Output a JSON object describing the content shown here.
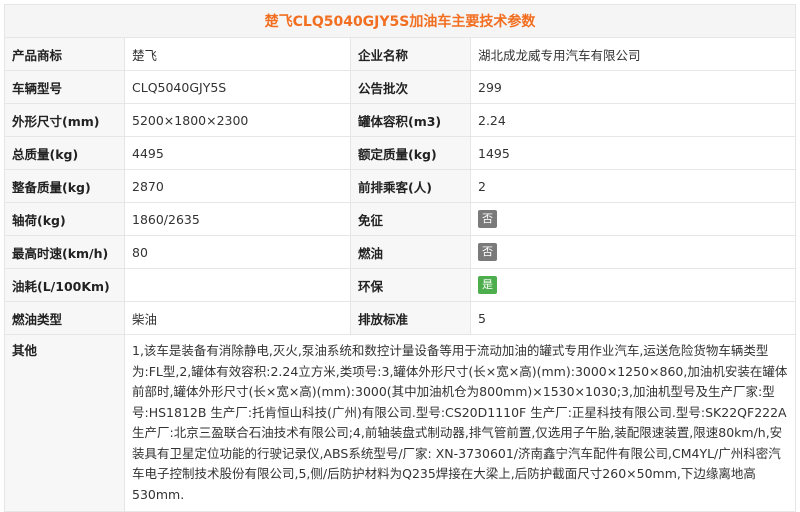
{
  "title": "楚飞CLQ5040GJY5S加油车主要技术参数",
  "rows": [
    {
      "l1": "产品商标",
      "v1": "楚飞",
      "l2": "企业名称",
      "v2": "湖北成龙威专用汽车有限公司"
    },
    {
      "l1": "车辆型号",
      "v1": "CLQ5040GJY5S",
      "l2": "公告批次",
      "v2": "299"
    },
    {
      "l1": "外形尺寸(mm)",
      "v1": "5200×1800×2300",
      "l2": "罐体容积(m3)",
      "v2": "2.24"
    },
    {
      "l1": "总质量(kg)",
      "v1": "4495",
      "l2": "额定质量(kg)",
      "v2": "1495"
    },
    {
      "l1": "整备质量(kg)",
      "v1": "2870",
      "l2": "前排乘客(人)",
      "v2": "2"
    },
    {
      "l1": "轴荷(kg)",
      "v1": "1860/2635",
      "l2": "免征",
      "badge": "否",
      "badge_type": "no"
    },
    {
      "l1": "最高时速(km/h)",
      "v1": "80",
      "l2": "燃油",
      "badge": "否",
      "badge_type": "no"
    },
    {
      "l1": "油耗(L/100Km)",
      "v1": "",
      "l2": "环保",
      "badge": "是",
      "badge_type": "yes"
    },
    {
      "l1": "燃油类型",
      "v1": "柴油",
      "l2": "排放标准",
      "v2": "5"
    }
  ],
  "other": {
    "label": "其他",
    "text": "1,该车是装备有消除静电,灭火,泵油系统和数控计量设备等用于流动加油的罐式专用作业汽车,运送危险货物车辆类型为:FL型,2,罐体有效容积:2.24立方米,类项号:3,罐体外形尺寸(长×宽×高)(mm):3000×1250×860,加油机安装在罐体前部时,罐体外形尺寸(长×宽×高)(mm):3000(其中加油机仓为800mm)×1530×1030;3,加油机型号及生产厂家:型号:HS1812B 生产厂:托肯恒山科技(广州)有限公司.型号:CS20D1110F 生产厂:正星科技有限公司.型号:SK22QF222A 生产厂:北京三盈联合石油技术有限公司;4,前轴装盘式制动器,排气管前置,仅选用子午胎,装配限速装置,限速80km/h,安装具有卫星定位功能的行驶记录仪,ABS系统型号/厂家: XN-3730601/济南鑫宁汽车配件有限公司,CM4YL/广州科密汽车电子控制技术股份有限公司,5,侧/后防护材料为Q235焊接在大梁上,后防护截面尺寸260×50mm,下边缘离地高530mm."
  },
  "colors": {
    "title": "#f26f21",
    "badge_no": "#7a7a7a",
    "badge_yes": "#4cae4c"
  }
}
